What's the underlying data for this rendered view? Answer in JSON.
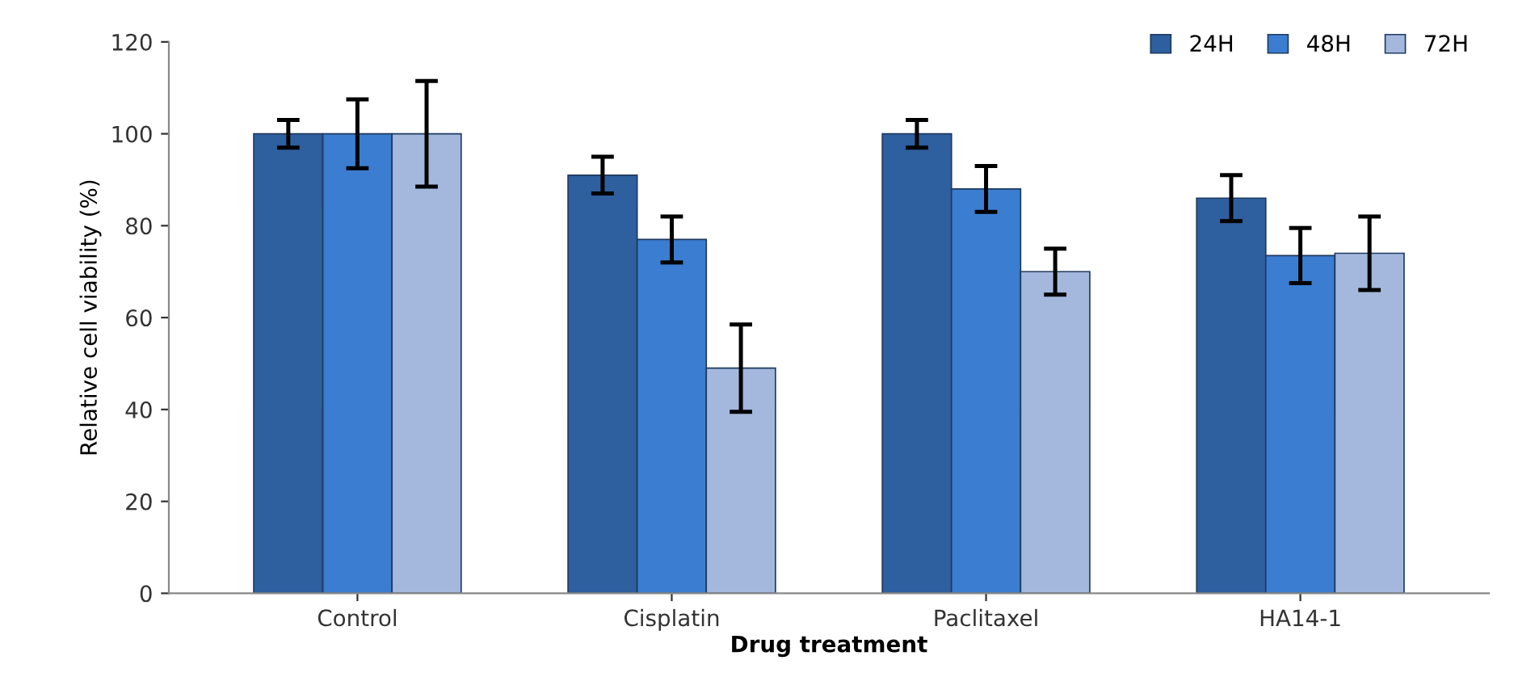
{
  "chart_data": {
    "type": "bar",
    "xlabel": "Drug treatment",
    "ylabel": "Relative cell viability (%)",
    "categories": [
      "Control",
      "Cisplatin",
      "Paclitaxel",
      "HA14-1"
    ],
    "series": [
      {
        "name": "24H",
        "color": "#2e5f9e",
        "values": [
          100,
          91,
          100,
          86
        ],
        "errors": [
          3,
          4,
          3,
          5
        ]
      },
      {
        "name": "48H",
        "color": "#3b7dd0",
        "values": [
          100,
          77,
          88,
          73.5
        ],
        "errors": [
          7.5,
          5,
          5,
          6
        ]
      },
      {
        "name": "72H",
        "color": "#a3b8dc",
        "values": [
          100,
          49,
          70,
          74
        ],
        "errors": [
          11.5,
          9.5,
          5,
          8
        ]
      }
    ],
    "ylim": [
      0,
      120
    ],
    "yticks": [
      0,
      20,
      40,
      60,
      80,
      100,
      120
    ],
    "grid": false,
    "legend": "top right"
  }
}
